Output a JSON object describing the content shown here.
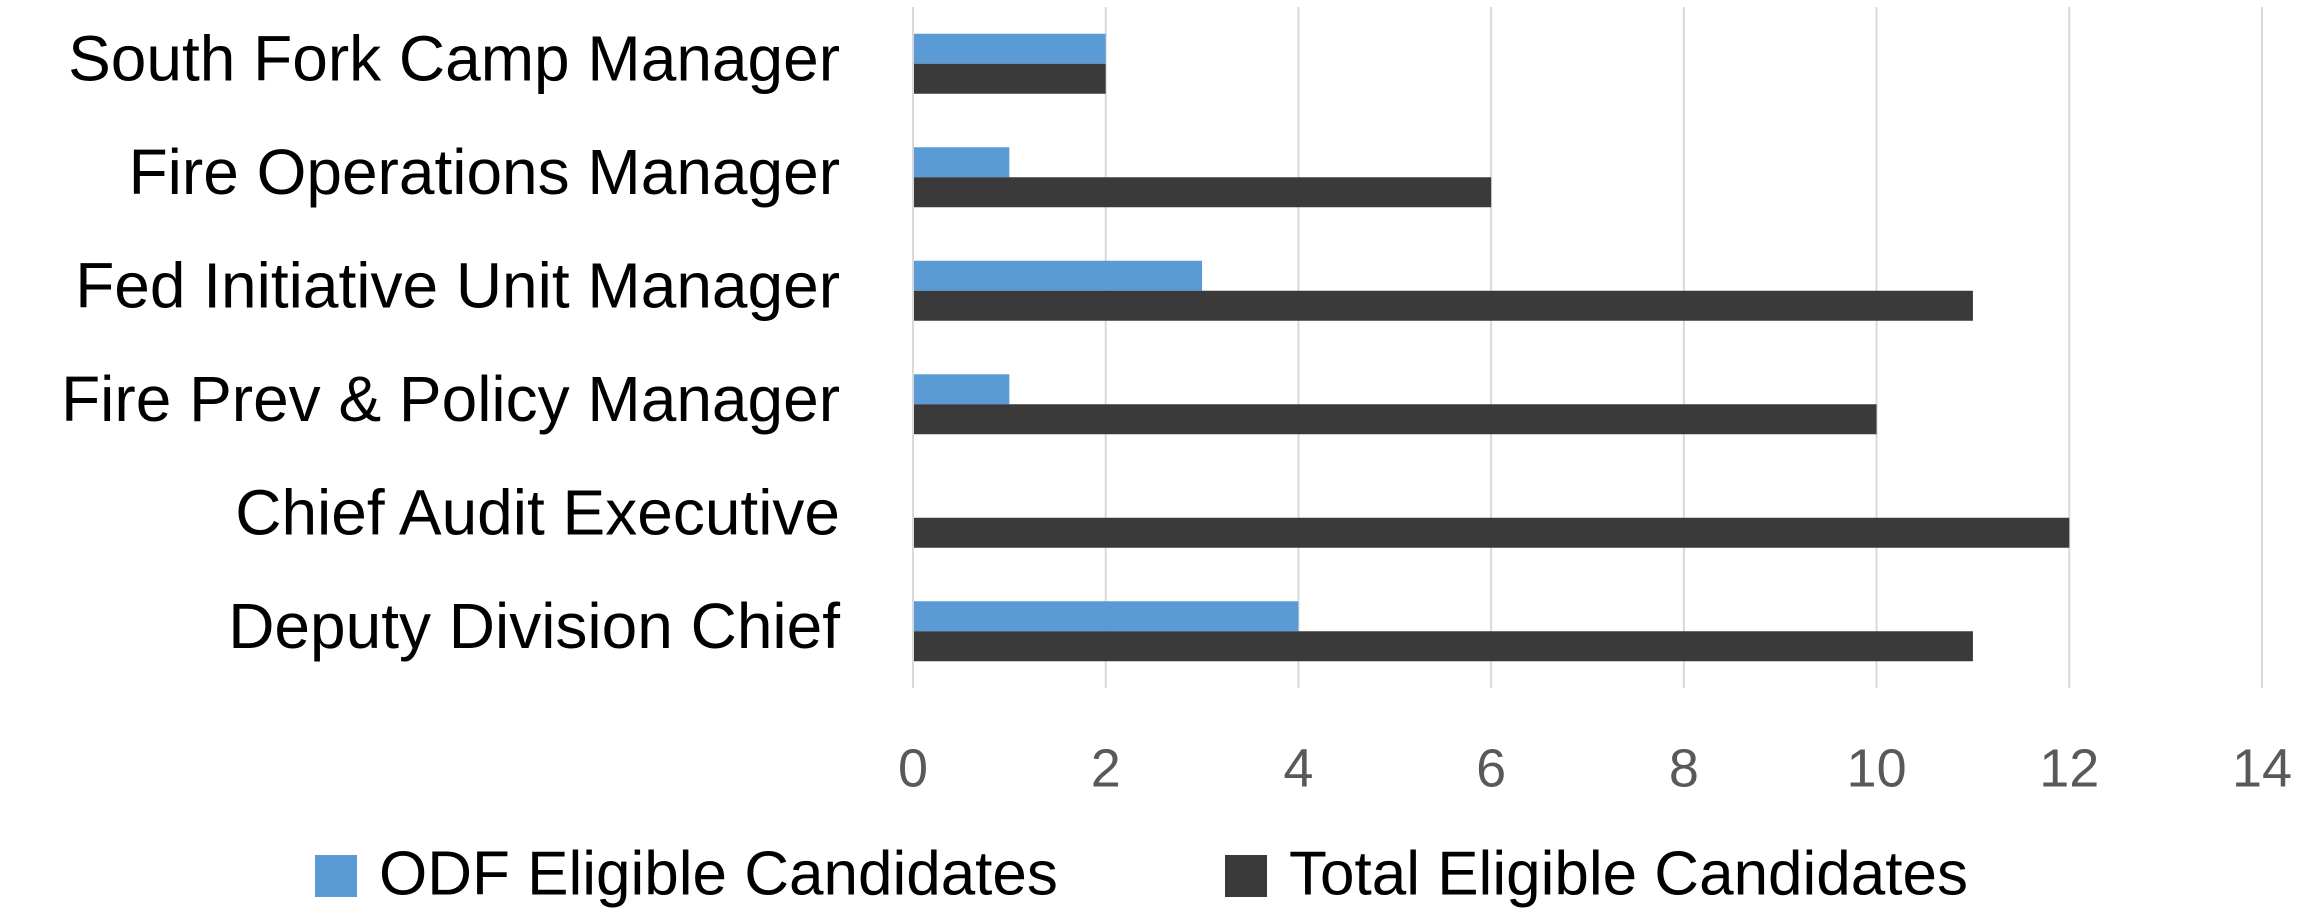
{
  "chart_data": {
    "type": "hbar",
    "categories": [
      "South Fork Camp Manager",
      "Fire Operations Manager",
      "Fed Initiative Unit Manager",
      "Fire Prev & Policy Manager",
      "Chief Audit Executive",
      "Deputy Division Chief"
    ],
    "series": [
      {
        "name": "ODF Eligible Candidates",
        "color": "#5b9bd5",
        "values": [
          2,
          1,
          3,
          1,
          0,
          4
        ]
      },
      {
        "name": "Total Eligible Candidates",
        "color": "#3a3a3a",
        "values": [
          2,
          6,
          11,
          10,
          12,
          11
        ]
      }
    ],
    "xlim": [
      0,
      14
    ],
    "xticks": [
      0,
      2,
      4,
      6,
      8,
      10,
      12,
      14
    ],
    "grid": true,
    "legend": "bottom"
  }
}
